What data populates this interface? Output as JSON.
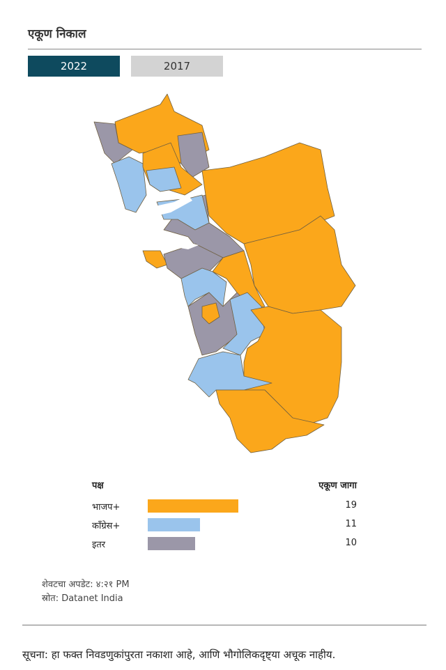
{
  "header": {
    "title": "एकूण निकाल"
  },
  "tabs": [
    "2022",
    "2017"
  ],
  "table": {
    "headers": [
      "पक्ष",
      "एकूण जागा"
    ],
    "rows": [
      {
        "party": "भाजप+",
        "seats": 19,
        "color": "#fba71b"
      },
      {
        "party": "काँग्रेस+",
        "seats": 11,
        "color": "#9ac4ec"
      },
      {
        "party": "इतर",
        "seats": 10,
        "color": "#9b97a8"
      }
    ]
  },
  "footer": {
    "updated": "शेवटचा अपडेट: ४:२१ PM",
    "source": "स्रोत: Datanet India"
  },
  "note": "सूचना: हा फक्त निवडणुकांपुरता नकाशा आहे, आणि भौगोलिकदृष्ट्या अचूक नाहीय."
}
